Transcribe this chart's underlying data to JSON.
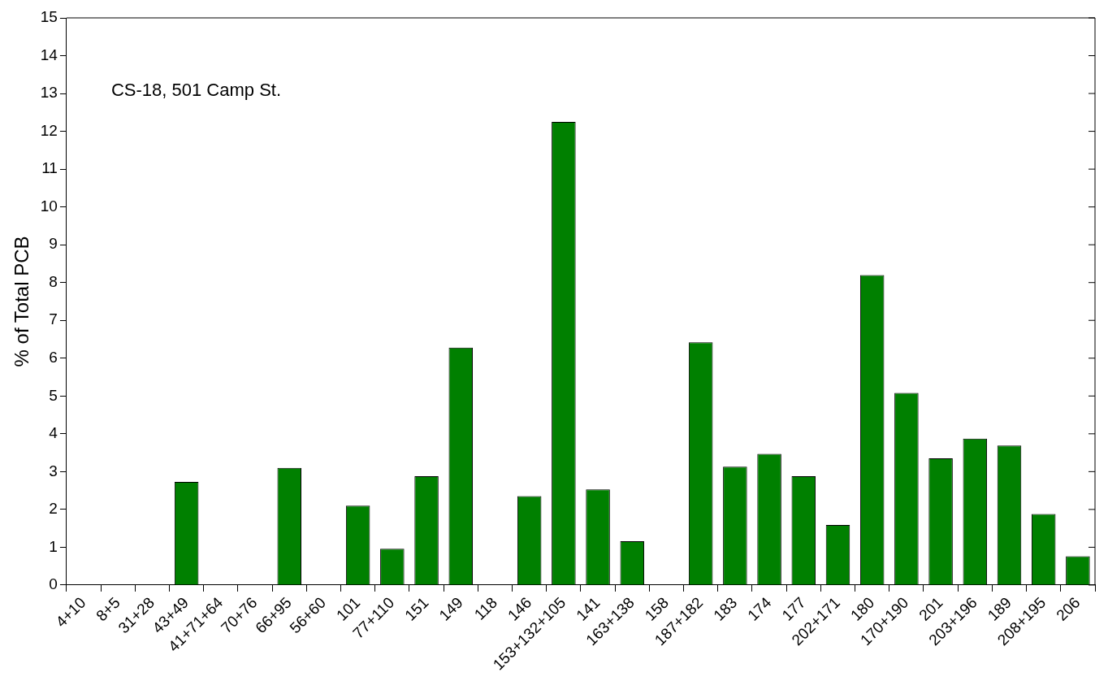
{
  "chart_data": {
    "type": "bar",
    "ylabel": "% of Total PCB",
    "annotations": [
      "CS-18, 501 Camp St."
    ],
    "categories": [
      "4+10",
      "8+5",
      "31+28",
      "43+49",
      "41+71+64",
      "70+76",
      "66+95",
      "56+60",
      "101",
      "77+110",
      "151",
      "149",
      "118",
      "146",
      "153+132+105",
      "141",
      "163+138",
      "158",
      "187+182",
      "183",
      "174",
      "177",
      "202+171",
      "180",
      "170+190",
      "201",
      "203+196",
      "189",
      "208+195",
      "206"
    ],
    "values": [
      0,
      0,
      0,
      2.73,
      0,
      0,
      3.1,
      0,
      2.1,
      0.96,
      2.88,
      6.28,
      0,
      2.35,
      12.25,
      2.53,
      1.16,
      0,
      6.42,
      3.13,
      3.47,
      2.88,
      1.59,
      8.2,
      5.08,
      3.35,
      3.87,
      3.69,
      1.88,
      0.76
    ],
    "color": "#008000",
    "ylim": [
      0,
      15
    ],
    "yticks": [
      0,
      1,
      2,
      3,
      4,
      5,
      6,
      7,
      8,
      9,
      10,
      11,
      12,
      13,
      14,
      15
    ],
    "grid": false,
    "legend": false
  }
}
